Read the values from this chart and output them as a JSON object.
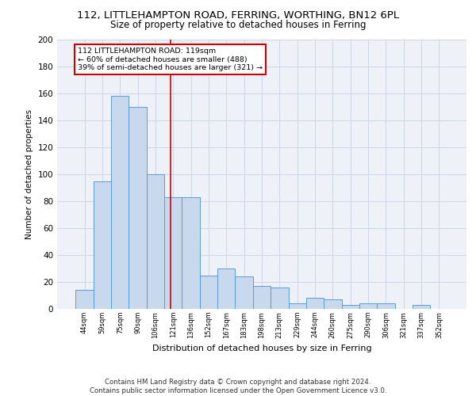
{
  "title1": "112, LITTLEHAMPTON ROAD, FERRING, WORTHING, BN12 6PL",
  "title2": "Size of property relative to detached houses in Ferring",
  "xlabel": "Distribution of detached houses by size in Ferring",
  "ylabel": "Number of detached properties",
  "categories": [
    "44sqm",
    "59sqm",
    "75sqm",
    "90sqm",
    "106sqm",
    "121sqm",
    "136sqm",
    "152sqm",
    "167sqm",
    "183sqm",
    "198sqm",
    "213sqm",
    "229sqm",
    "244sqm",
    "260sqm",
    "275sqm",
    "290sqm",
    "306sqm",
    "321sqm",
    "337sqm",
    "352sqm"
  ],
  "values": [
    14,
    95,
    158,
    150,
    100,
    83,
    83,
    25,
    30,
    24,
    17,
    16,
    4,
    8,
    7,
    3,
    4,
    4,
    0,
    3,
    0
  ],
  "bar_color": "#c8d9ed",
  "bar_edge_color": "#5b9bd5",
  "grid_color": "#d0d8e8",
  "background_color": "#eef2f8",
  "vline_color": "#cc0000",
  "annotation_text": "112 LITTLEHAMPTON ROAD: 119sqm\n← 60% of detached houses are smaller (488)\n39% of semi-detached houses are larger (321) →",
  "annotation_box_color": "#ffffff",
  "annotation_box_edge_color": "#cc0000",
  "footnote": "Contains HM Land Registry data © Crown copyright and database right 2024.\nContains public sector information licensed under the Open Government Licence v3.0.",
  "ylim": [
    0,
    200
  ],
  "yticks": [
    0,
    20,
    40,
    60,
    80,
    100,
    120,
    140,
    160,
    180,
    200
  ],
  "title1_fontsize": 9.5,
  "title2_fontsize": 8.5
}
